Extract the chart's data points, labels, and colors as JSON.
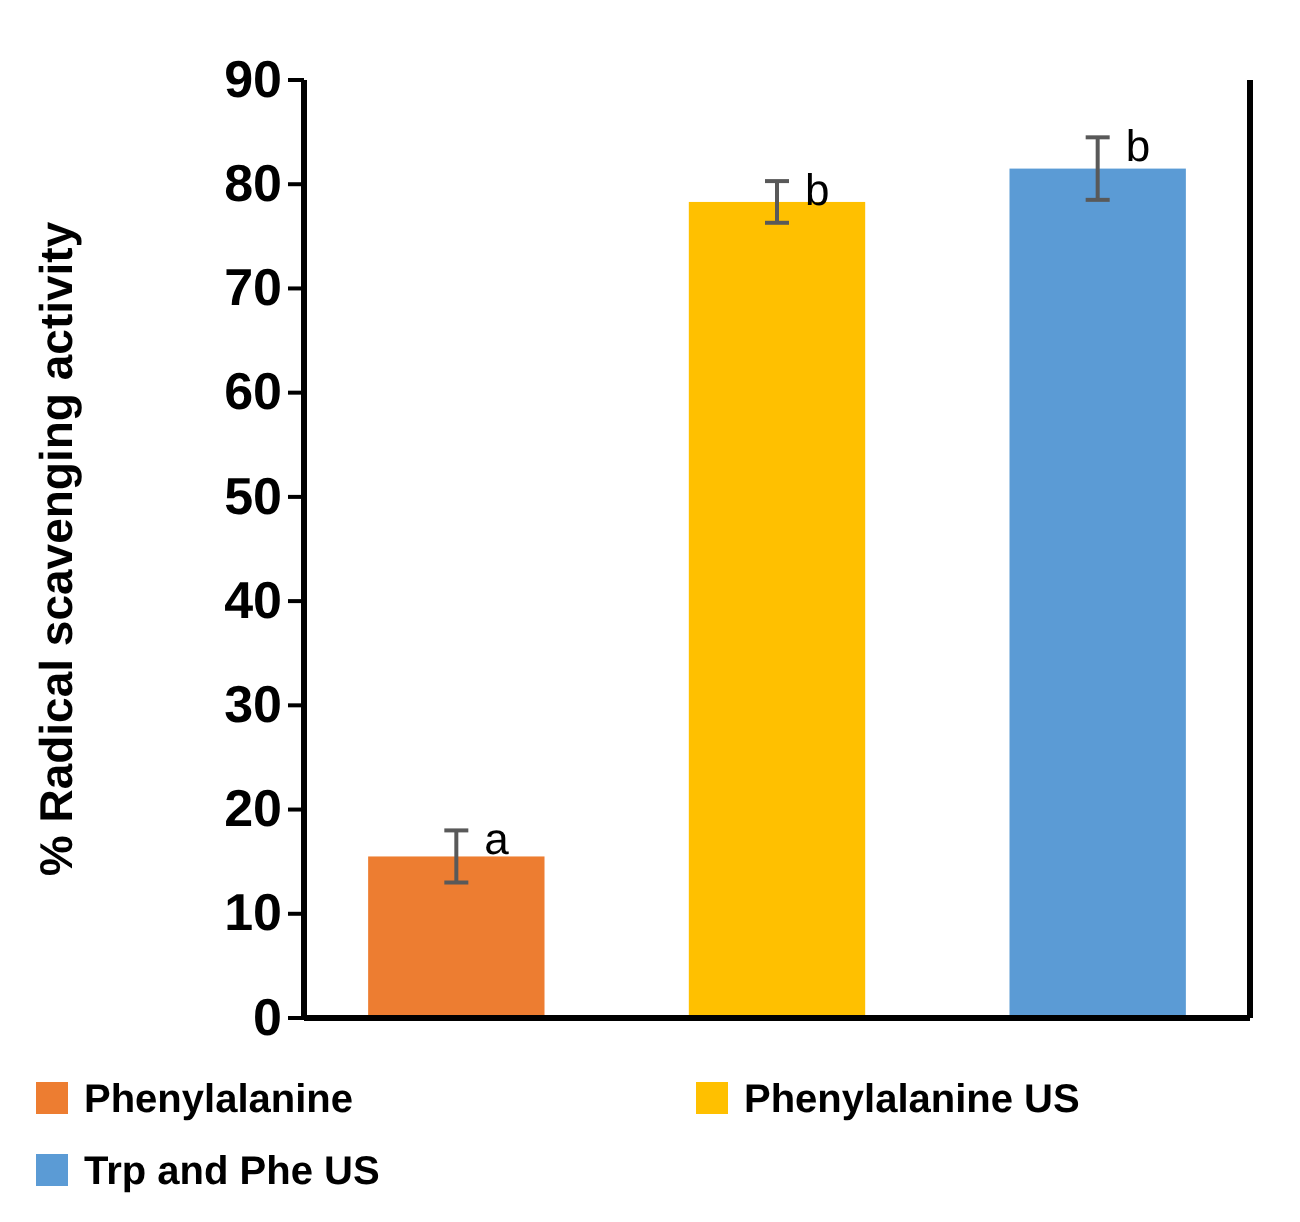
{
  "chart_data": {
    "type": "bar",
    "ylabel": "% Radical scavenging activity",
    "categories": [
      null
    ],
    "series": [
      {
        "name": "Phenylalanine",
        "color": "#ed7d31",
        "values": [
          15.5
        ],
        "errors": [
          2.5
        ]
      },
      {
        "name": "Phenylalanine US",
        "color": "#ffc000",
        "values": [
          78.3
        ],
        "errors": [
          2.0
        ]
      },
      {
        "name": "Trp and Phe US",
        "color": "#5b9bd5",
        "values": [
          81.5
        ],
        "errors": [
          3.0
        ]
      }
    ],
    "ylim": [
      0,
      90
    ],
    "yticks": [
      0,
      10,
      20,
      30,
      40,
      50,
      60,
      70,
      80,
      90
    ],
    "legend": "bottom",
    "annotations": [
      "a",
      "b",
      "b"
    ]
  }
}
